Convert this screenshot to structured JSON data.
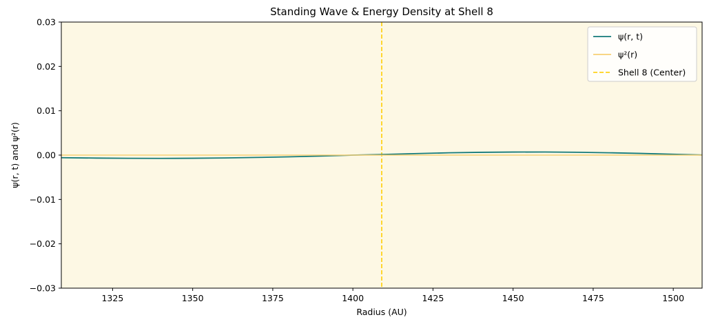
{
  "chart_data": {
    "type": "line",
    "title": "Standing Wave & Energy Density at Shell 8",
    "xlabel": "Radius (AU)",
    "ylabel": "ψ(r, t) and ψ²(r)",
    "xlim": [
      1309,
      1509
    ],
    "ylim": [
      -0.03,
      0.03
    ],
    "x_ticks": [
      1325,
      1350,
      1375,
      1400,
      1425,
      1450,
      1475,
      1500
    ],
    "x_tick_labels": [
      "1325",
      "1350",
      "1375",
      "1400",
      "1425",
      "1450",
      "1475",
      "1500"
    ],
    "y_ticks": [
      -0.03,
      -0.02,
      -0.01,
      0.0,
      0.01,
      0.02,
      0.03
    ],
    "y_tick_labels": [
      "−0.03",
      "−0.02",
      "−0.01",
      "0.00",
      "0.01",
      "0.02",
      "0.03"
    ],
    "grid": false,
    "background_color": "#fdf8e4",
    "legend_position": "top-right",
    "series": [
      {
        "name": "ψ(r, t)",
        "color": "#137a7a",
        "style": "solid",
        "x": [
          1309,
          1320,
          1330,
          1340,
          1350,
          1360,
          1370,
          1380,
          1390,
          1400,
          1410,
          1420,
          1430,
          1440,
          1450,
          1460,
          1470,
          1480,
          1490,
          1500,
          1509
        ],
        "y": [
          -0.00058,
          -0.00067,
          -0.00072,
          -0.00074,
          -0.00071,
          -0.00064,
          -0.00053,
          -0.00039,
          -0.00021,
          0.0,
          0.00015,
          0.00035,
          0.00052,
          0.00063,
          0.00069,
          0.0007,
          0.00064,
          0.00053,
          0.00038,
          0.00019,
          3e-05
        ]
      },
      {
        "name": "ψ²(r)",
        "color": "#f7cf74",
        "style": "solid",
        "x": [
          1309,
          1509
        ],
        "y": [
          0.0,
          0.0
        ]
      }
    ],
    "vlines": [
      {
        "name": "Shell 8 (Center)",
        "x": 1409,
        "color": "#ffd21a",
        "style": "dashed"
      }
    ]
  }
}
